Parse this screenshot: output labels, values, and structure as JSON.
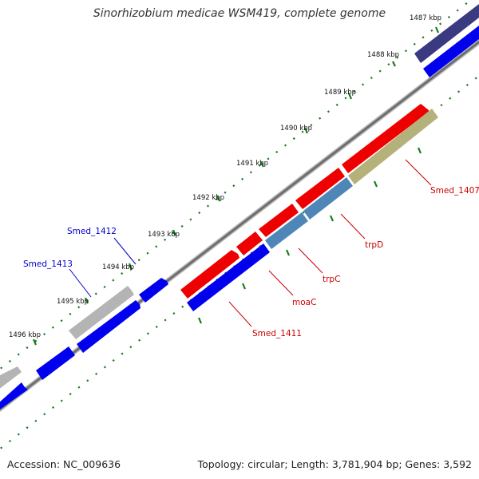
{
  "title": "Sinorhizobium medicae WSM419, complete genome",
  "footer": {
    "accession": "Accession: NC_009636",
    "summary": "Topology: circular; Length: 3,781,904 bp; Genes: 3,592"
  },
  "ticks": [
    "1487 kbp",
    "1488 kbp",
    "1489 kbp",
    "1490 kbp",
    "1491 kbp",
    "1492 kbp",
    "1493 kbp",
    "1494 kbp",
    "1495 kbp",
    "1496 kbp"
  ],
  "gene_labels": {
    "smed_1407": "Smed_1407",
    "trpD": "trpD",
    "trpC": "trpC",
    "moaC": "moaC",
    "smed_1411": "Smed_1411",
    "smed_1412": "Smed_1412",
    "smed_1413": "Smed_1413"
  },
  "colors": {
    "forward_gene": "#0000ee",
    "highlight_gene": "#ee0000",
    "pathway_gene": "#4f86b8",
    "olive_gene": "#b5b17a",
    "grey_gene": "#b4b4b4",
    "navy_gene": "#3a3a80",
    "backbone": "#7a7a7a",
    "tick_marks": "#1a7a1a",
    "red_label": "#cc0000",
    "blue_label": "#0000cc"
  }
}
